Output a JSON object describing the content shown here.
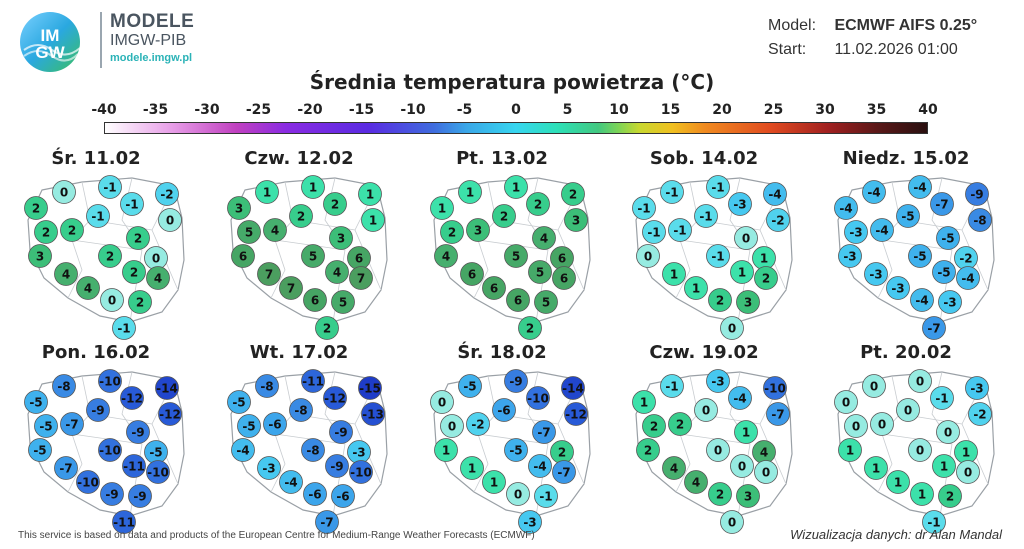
{
  "brand": {
    "logo_text_top": "IM",
    "logo_text_bottom": "GW",
    "title": "MODELE",
    "subtitle": "IMGW-PIB",
    "url": "modele.imgw.pl"
  },
  "model_info": {
    "model_label": "Model:",
    "model_value": "ECMWF AIFS 0.25°",
    "start_label": "Start:",
    "start_value": "11.02.2026 01:00"
  },
  "title": "Średnia temperatura powietrza (°C)",
  "scale": {
    "ticks": [
      "-40",
      "-35",
      "-30",
      "-25",
      "-20",
      "-15",
      "-10",
      "-5",
      "0",
      "5",
      "10",
      "15",
      "20",
      "25",
      "30",
      "35",
      "40"
    ]
  },
  "colors": {
    "map_fill": "#ffffff",
    "map_border": "#9aa0a6",
    "circle_stroke": "#555555"
  },
  "panels": [
    {
      "title": "Śr. 11.02",
      "values": [
        0,
        -1,
        -2,
        2,
        -1,
        -1,
        0,
        2,
        2,
        2,
        3,
        2,
        0,
        2,
        4,
        4,
        4,
        0,
        2,
        -1
      ]
    },
    {
      "title": "Czw. 12.02",
      "values": [
        1,
        1,
        1,
        3,
        2,
        2,
        1,
        5,
        4,
        3,
        6,
        5,
        6,
        4,
        7,
        7,
        7,
        6,
        5,
        2
      ]
    },
    {
      "title": "Pt. 13.02",
      "values": [
        1,
        1,
        2,
        1,
        2,
        2,
        3,
        2,
        3,
        4,
        4,
        5,
        6,
        5,
        6,
        6,
        6,
        6,
        5,
        2
      ]
    },
    {
      "title": "Sob. 14.02",
      "values": [
        -1,
        -1,
        -4,
        -1,
        -3,
        -1,
        -2,
        -1,
        -1,
        0,
        0,
        -1,
        1,
        1,
        1,
        1,
        2,
        2,
        3,
        0
      ]
    },
    {
      "title": "Niedz. 15.02",
      "values": [
        -4,
        -4,
        -9,
        -4,
        -7,
        -5,
        -8,
        -3,
        -4,
        -5,
        -3,
        -5,
        -2,
        -5,
        -3,
        -3,
        -4,
        -4,
        -3,
        -7
      ]
    },
    {
      "title": "Pon. 16.02",
      "values": [
        -8,
        -10,
        -14,
        -5,
        -12,
        -9,
        -12,
        -5,
        -7,
        -9,
        -5,
        -10,
        -5,
        -11,
        -7,
        -10,
        -10,
        -9,
        -9,
        -11
      ]
    },
    {
      "title": "Wt. 17.02",
      "values": [
        -8,
        -11,
        -15,
        -5,
        -12,
        -8,
        -13,
        -5,
        -6,
        -9,
        -4,
        -8,
        -3,
        -9,
        -3,
        -4,
        -10,
        -6,
        -6,
        -7
      ]
    },
    {
      "title": "Śr. 18.02",
      "values": [
        -5,
        -9,
        -14,
        0,
        -10,
        -6,
        -12,
        0,
        -2,
        -7,
        1,
        -5,
        2,
        -4,
        1,
        1,
        -7,
        0,
        -1,
        -3
      ]
    },
    {
      "title": "Czw. 19.02",
      "values": [
        -1,
        -3,
        -10,
        1,
        -4,
        0,
        -7,
        2,
        2,
        1,
        2,
        0,
        4,
        0,
        4,
        4,
        0,
        2,
        3,
        0
      ]
    },
    {
      "title": "Pt. 20.02",
      "values": [
        0,
        0,
        -3,
        0,
        -1,
        0,
        -2,
        0,
        0,
        0,
        1,
        0,
        1,
        1,
        1,
        1,
        0,
        1,
        2,
        -1
      ]
    }
  ],
  "footer": {
    "disclaimer": "This service is based on data and products of the European Centre for Medium-Range Weather Forecasts (ECMWF)",
    "credit": "Wizualizacja danych: dr Alan Mandal"
  }
}
